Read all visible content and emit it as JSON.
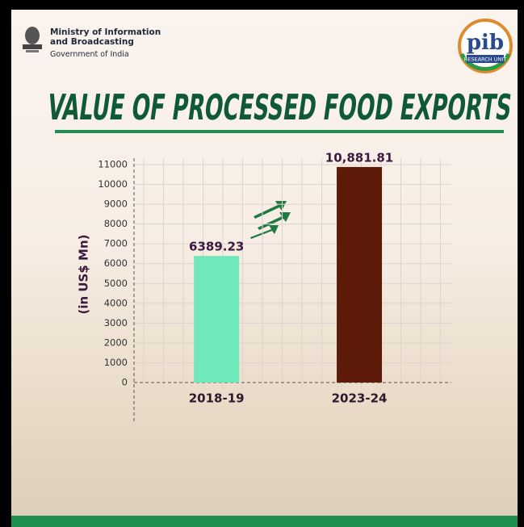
{
  "header": {
    "ministry": [
      "Ministry of Information",
      "and Broadcasting"
    ],
    "government": "Government of India",
    "logo": "pib",
    "logo_sub": "RESEARCH UNIT"
  },
  "chart_data": {
    "type": "bar",
    "title": "VALUE OF PROCESSED FOOD EXPORTS",
    "y_label": "(in US$ Mn)",
    "categories": [
      "2018-19",
      "2023-24"
    ],
    "values": [
      6389.23,
      10881.81
    ],
    "value_labels": [
      "6389.23",
      "10,881.81"
    ],
    "colors": [
      "#6fe8bb",
      "#5e1a08"
    ],
    "ylim": [
      0,
      11000
    ],
    "yticks": [
      0,
      1000,
      2000,
      3000,
      4000,
      5000,
      6000,
      7000,
      8000,
      9000,
      10000,
      11000
    ],
    "grid": true
  }
}
